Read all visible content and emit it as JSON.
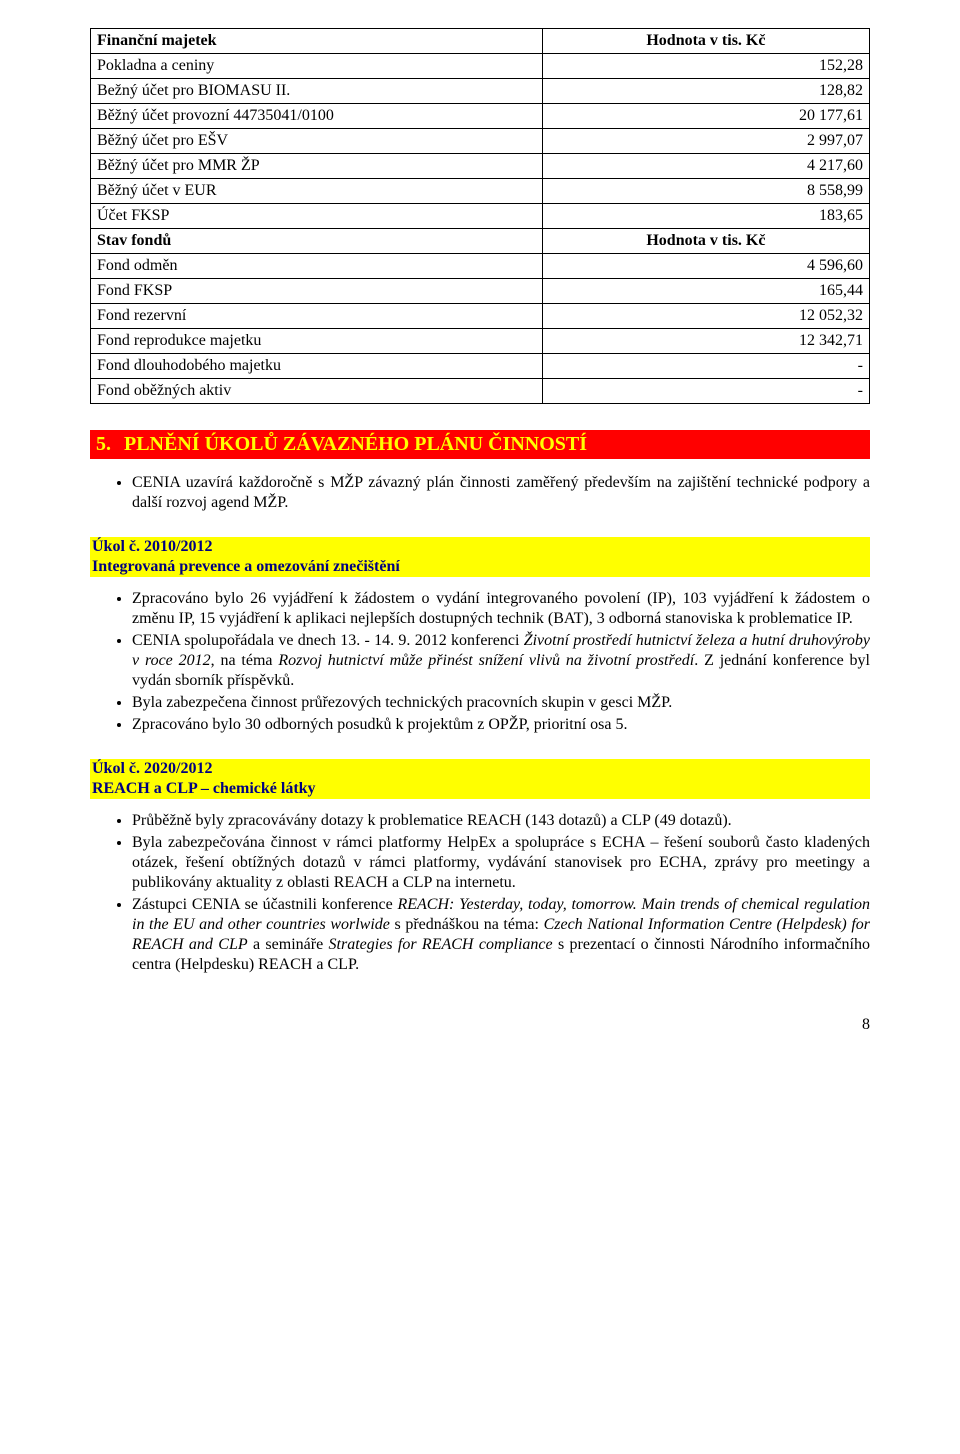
{
  "table1": {
    "rows": [
      [
        "Finanční majetek",
        "Hodnota v tis. Kč",
        true
      ],
      [
        "Pokladna a ceniny",
        "152,28",
        false
      ],
      [
        "Bežný účet pro BIOMASU II.",
        "128,82",
        false
      ],
      [
        "Běžný účet provozní 44735041/0100",
        "20 177,61",
        false
      ],
      [
        "Běžný účet pro  EŠV",
        "2 997,07",
        false
      ],
      [
        "Běžný účet  pro MMR ŽP",
        "4 217,60",
        false
      ],
      [
        "Běžný účet v EUR",
        "8 558,99",
        false
      ],
      [
        "Účet FKSP",
        "183,65",
        false
      ],
      [
        "Stav fondů",
        "Hodnota v tis. Kč",
        true
      ],
      [
        "Fond odměn",
        "4 596,60",
        false
      ],
      [
        "Fond  FKSP",
        "165,44",
        false
      ],
      [
        "Fond rezervní",
        "12 052,32",
        false
      ],
      [
        "Fond reprodukce majetku",
        "12 342,71",
        false
      ],
      [
        "Fond dlouhodobého majetku",
        "-",
        false
      ],
      [
        "Fond oběžných aktiv",
        "-",
        false
      ]
    ]
  },
  "section5": {
    "num": "5.",
    "title": "PLNĚNÍ ÚKOLŮ ZÁVAZNÉHO PLÁNU ČINNOSTÍ",
    "intro": "CENIA uzavírá každoročně s MŽP závazný plán činnosti zaměřený především na zajištění technické podpory a další rozvoj agend MŽP."
  },
  "task_2010": {
    "code": "Úkol č. 2010/2012",
    "name": "Integrovaná prevence a omezování znečištění",
    "bullets": [
      {
        "pre": "Zpracováno bylo 26 vyjádření k žádostem o vydání integrovaného povolení (IP), 103 vyjádření k žádostem o změnu IP, 15 vyjádření k aplikaci nejlepších dostupných technik (BAT), 3 odborná stanoviska k problematice IP."
      },
      {
        "pre": "CENIA spolupořádala ve dnech 13. - 14. 9. 2012 konferenci ",
        "it1": "Životní prostředí hutnictví železa a hutní druhovýroby v roce 2012",
        "mid": ", na téma ",
        "it2": "Rozvoj hutnictví může přinést snížení vlivů na životní prostředí",
        "post": ". Z jednání konference byl vydán sborník příspěvků."
      },
      {
        "pre": "Byla zabezpečena činnost průřezových technických pracovních skupin v gesci MŽP."
      },
      {
        "pre": "Zpracováno bylo 30 odborných posudků k projektům z OPŽP, prioritní osa 5."
      }
    ]
  },
  "task_2020": {
    "code": "Úkol č. 2020/2012",
    "name": "REACH a CLP – chemické látky",
    "bullets": [
      {
        "pre": "Průběžně byly zpracovávány dotazy k problematice REACH (143 dotazů) a CLP (49 dotazů)."
      },
      {
        "pre": "Byla zabezpečována činnost v rámci platformy HelpEx a spolupráce s ECHA – řešení souborů často kladených otázek, řešení obtížných dotazů v rámci platformy, vydávání stanovisek pro ECHA, zprávy pro meetingy a publikovány aktuality z oblasti REACH a CLP na internetu."
      },
      {
        "pre": "Zástupci CENIA se účastnili konference ",
        "it1": "REACH: Yesterday, today, tomorrow. Main trends of chemical regulation in the EU and other countries worlwide",
        "mid": " s přednáškou na téma: ",
        "it2": "Czech National Information Centre (Helpdesk) for REACH and CLP",
        "mid2": " a semináře ",
        "it3": "Strategies for REACH compliance",
        "post": " s prezentací o činnosti Národního informačního centra (Helpdesku) REACH a CLP."
      }
    ]
  },
  "page_number": "8"
}
